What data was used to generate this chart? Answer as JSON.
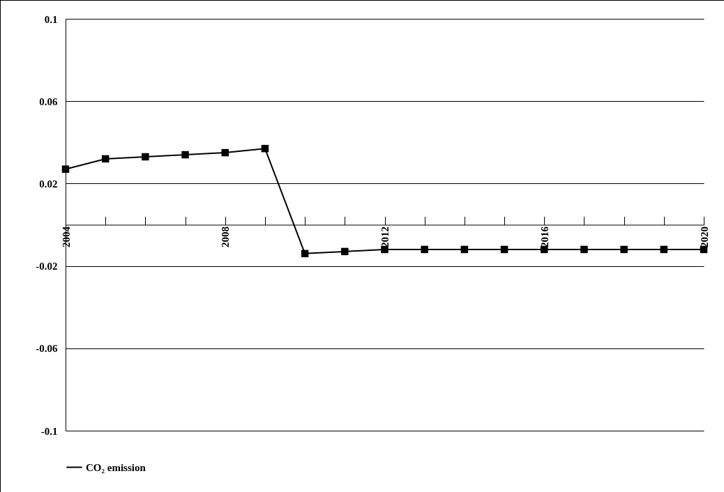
{
  "chart_data": {
    "type": "line",
    "x": [
      2004,
      2005,
      2006,
      2007,
      2008,
      2009,
      2010,
      2011,
      2012,
      2013,
      2014,
      2015,
      2016,
      2017,
      2018,
      2019,
      2020
    ],
    "series": [
      {
        "name": "CO₂ emission",
        "color": "#000000",
        "values": [
          0.027,
          0.032,
          0.033,
          0.034,
          0.035,
          0.037,
          -0.014,
          -0.013,
          -0.012,
          -0.012,
          -0.012,
          -0.012,
          -0.012,
          -0.012,
          -0.012,
          -0.012,
          -0.012
        ]
      }
    ],
    "xlim": [
      2004,
      2020
    ],
    "xticks": [
      2004,
      {
        "value": 2005,
        "label": null
      },
      {
        "value": 2006,
        "label": null
      },
      {
        "value": 2007,
        "label": null
      },
      2008,
      {
        "value": 2009,
        "label": null
      },
      {
        "value": 2010,
        "label": null
      },
      {
        "value": 2011,
        "label": null
      },
      2012,
      {
        "value": 2013,
        "label": null
      },
      {
        "value": 2014,
        "label": null
      },
      {
        "value": 2015,
        "label": null
      },
      2016,
      {
        "value": 2017,
        "label": null
      },
      {
        "value": 2018,
        "label": null
      },
      {
        "value": 2019,
        "label": null
      },
      2020
    ],
    "ylim": [
      -0.1,
      0.1
    ],
    "yticks": [
      -0.1,
      -0.06,
      -0.02,
      0.02,
      0.06,
      0.1
    ],
    "grid": "y",
    "legend": "bottom",
    "marker": "square",
    "line_style": "solid"
  }
}
